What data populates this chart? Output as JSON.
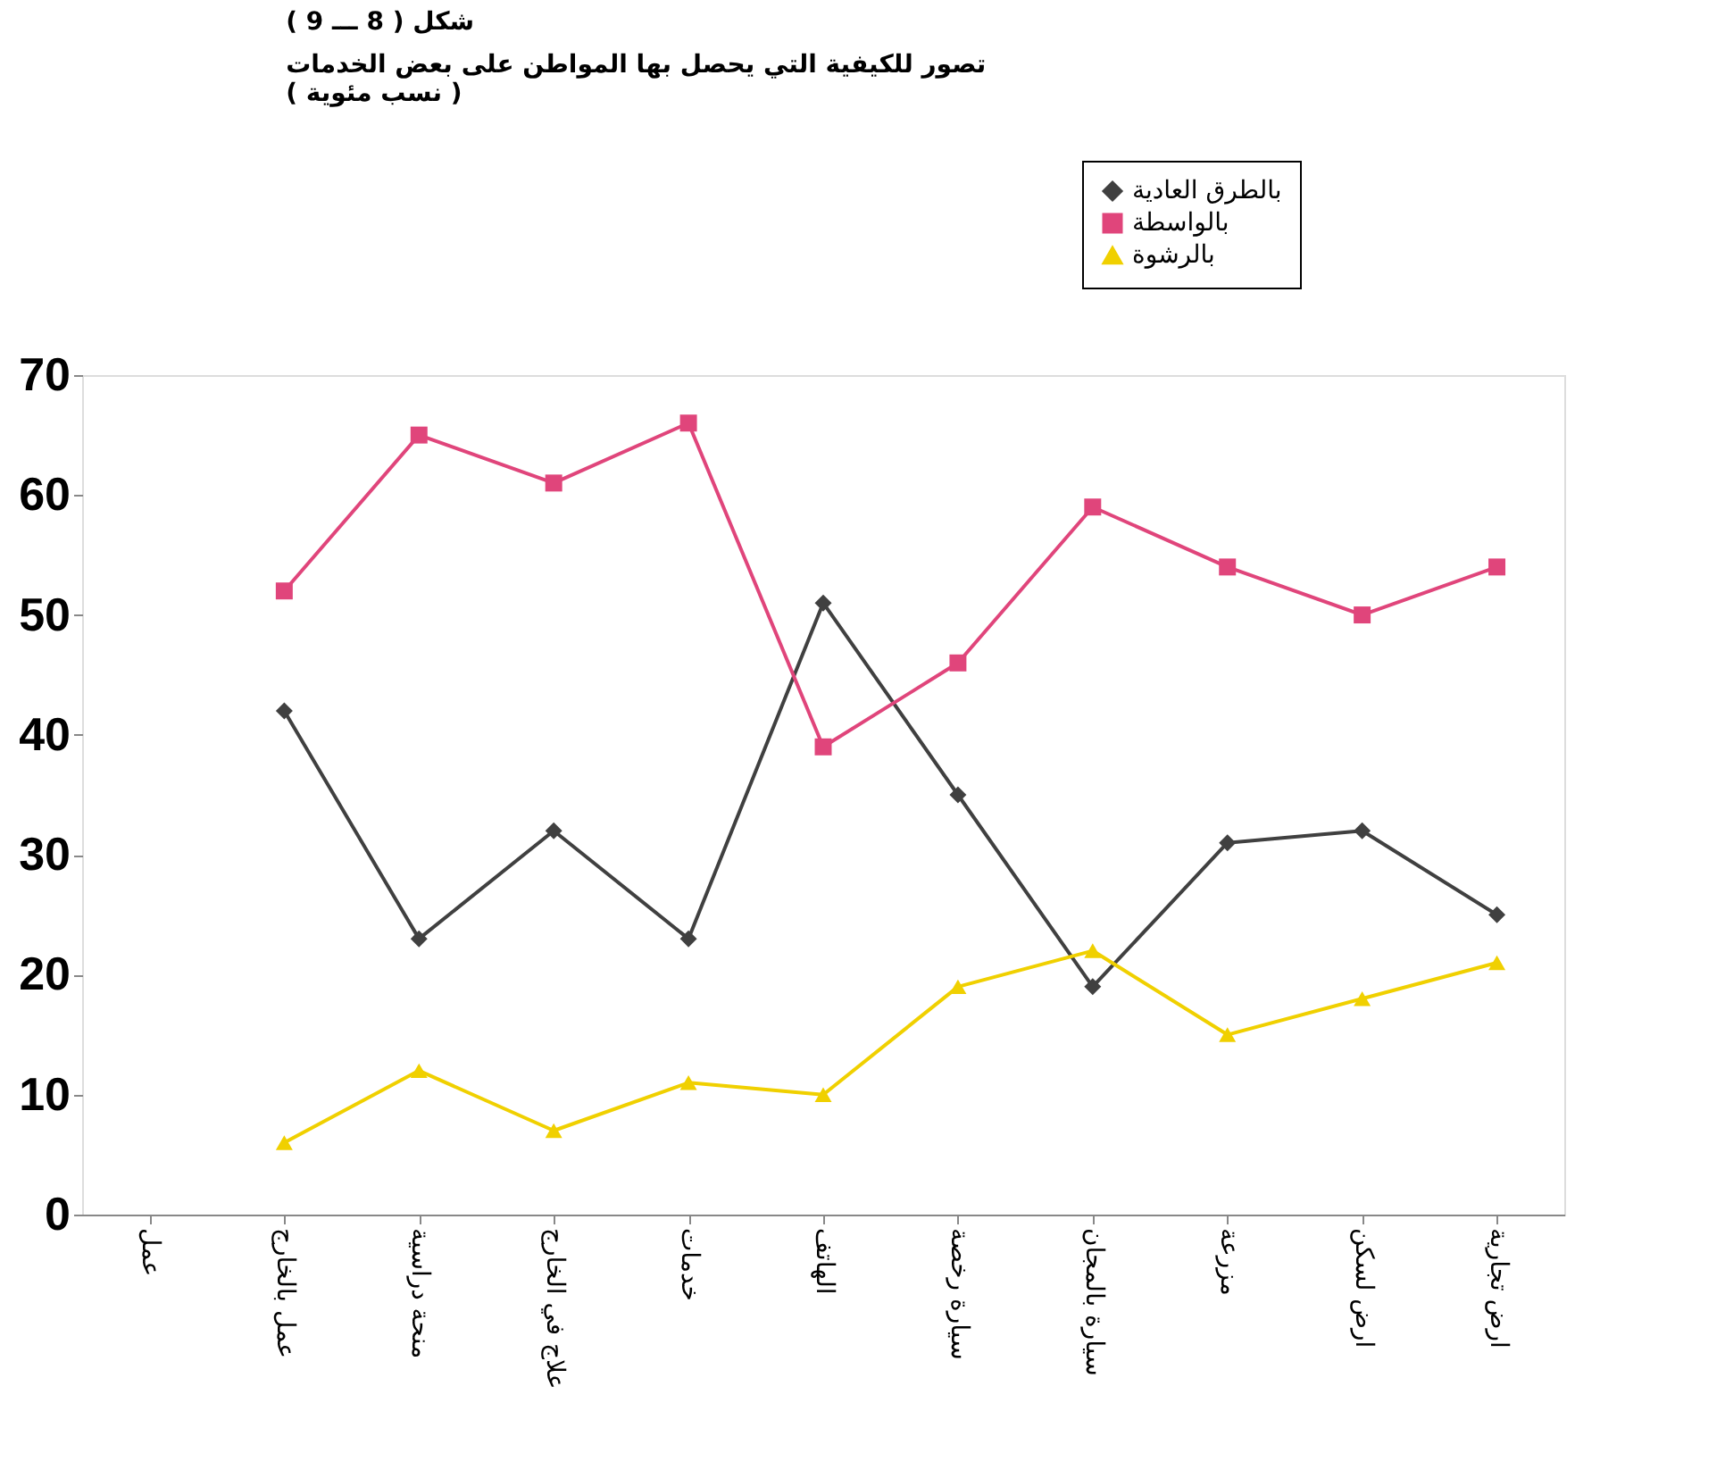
{
  "chart_data": {
    "type": "line",
    "title": "شكل ( 8 ـــ 9 )",
    "subtitle": [
      "تصور للكيفية التي يحصل بها المواطن على بعض الخدمات",
      "( نسب مئوية )"
    ],
    "categories": [
      "عمل",
      "عمل بالخارج",
      "منحة دراسية",
      "علاج في الخارج",
      "خدمات",
      "الهاتف",
      "سيارة رخصة",
      "سيارة بالمجان",
      "مزرعة",
      "ارض لسكن",
      "ارض تجارية"
    ],
    "series": [
      {
        "name": "بالطرق العادية",
        "color": "#404040",
        "marker": "diamond",
        "values": [
          null,
          42,
          23,
          32,
          23,
          51,
          35,
          19,
          31,
          32,
          25
        ]
      },
      {
        "name": "بالواسطة",
        "color": "#e0457b",
        "marker": "square",
        "values": [
          null,
          52,
          65,
          61,
          66,
          39,
          46,
          59,
          54,
          50,
          54
        ]
      },
      {
        "name": "بالرشوة",
        "color": "#f0d000",
        "marker": "triangle",
        "values": [
          null,
          6,
          12,
          7,
          11,
          10,
          19,
          22,
          15,
          18,
          21
        ]
      }
    ],
    "ylim": [
      0,
      70
    ],
    "yticks": [
      0,
      10,
      20,
      30,
      40,
      50,
      60,
      70
    ],
    "grid": false,
    "legend": "top right"
  }
}
